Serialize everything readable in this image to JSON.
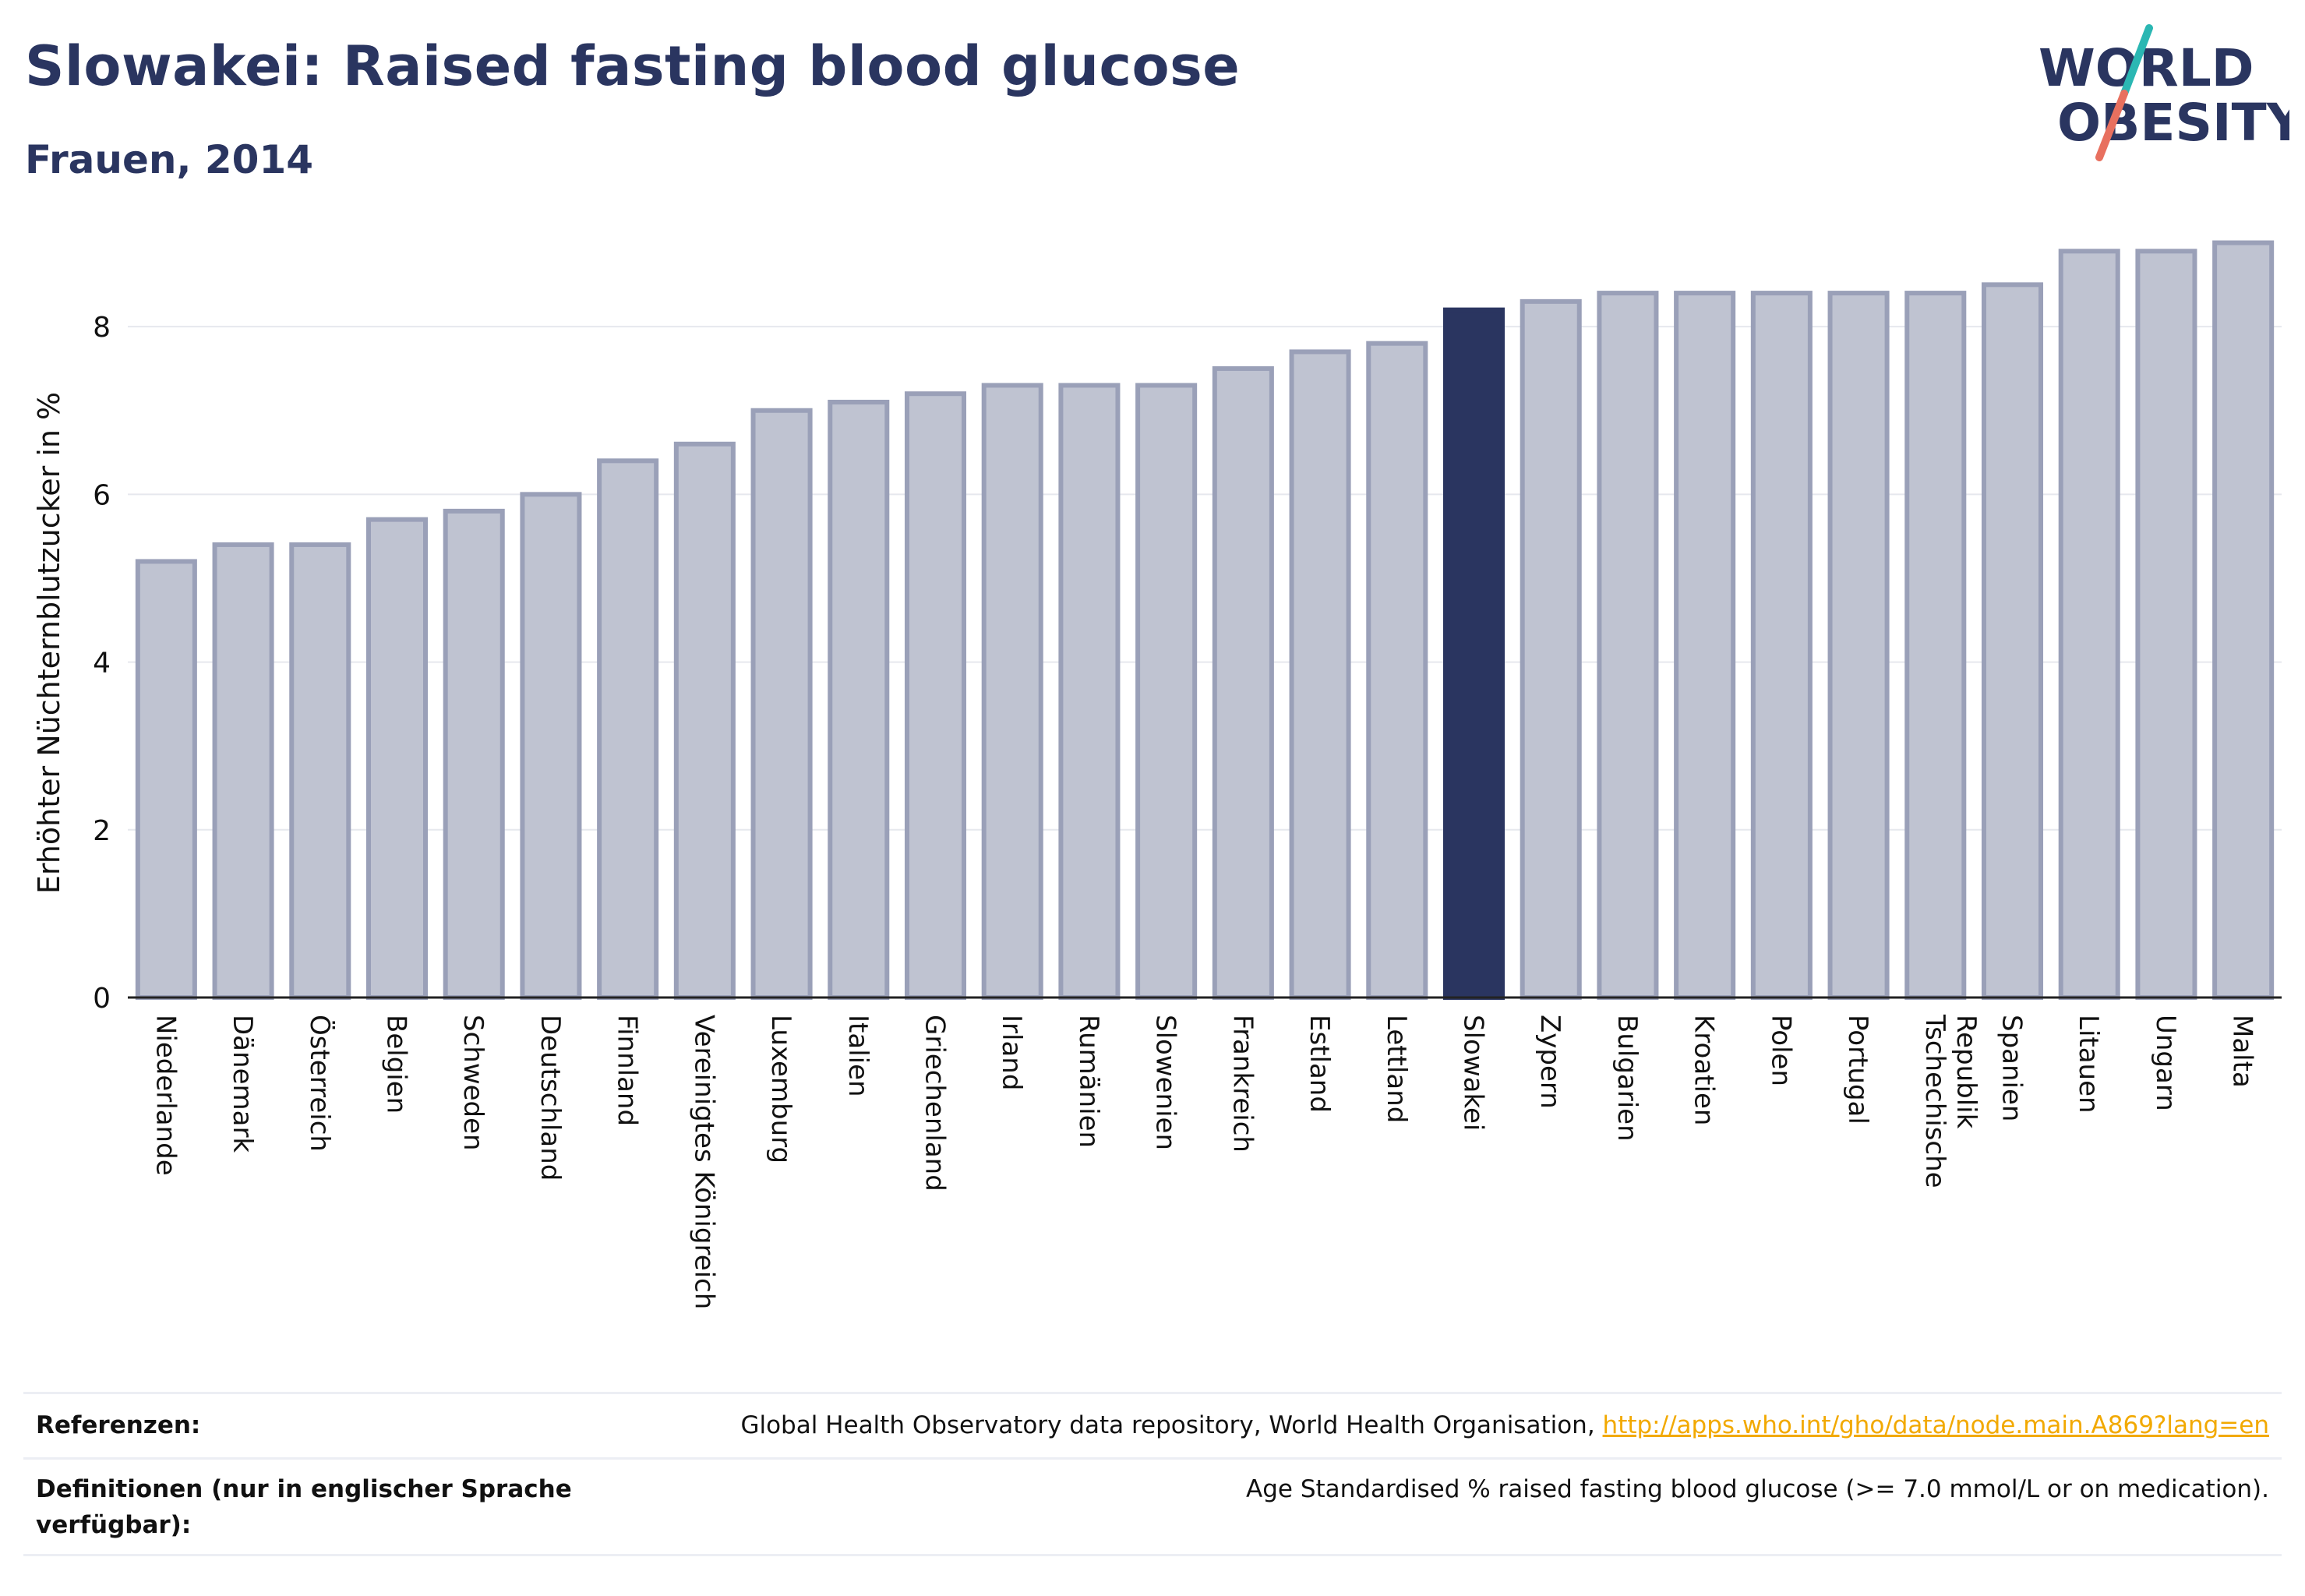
{
  "header": {
    "title": "Slowakei: Raised fasting blood glucose",
    "subtitle": "Frauen, 2014"
  },
  "logo": {
    "line1": "WORLD",
    "line2": "OBESITY",
    "accent_teal": "#2bb7b3",
    "accent_coral": "#e8705f"
  },
  "colors": {
    "bar_default": "#bfc3d1",
    "bar_default_border": "#9aa0b8",
    "bar_highlight": "#2a3560",
    "text_dark": "#2a3560",
    "link": "#f2a900"
  },
  "chart_data": {
    "type": "bar",
    "title": "Slowakei: Raised fasting blood glucose",
    "subtitle": "Frauen, 2014",
    "xlabel": "",
    "ylabel": "Erhöhter Nüchternblutzucker in %",
    "ylim": [
      0,
      9.2
    ],
    "yticks": [
      0,
      2,
      4,
      6,
      8
    ],
    "grid": true,
    "highlight": "Slowakei",
    "categories": [
      "Niederlande",
      "Dänemark",
      "Österreich",
      "Belgien",
      "Schweden",
      "Deutschland",
      "Finnland",
      "Vereinigtes Königreich",
      "Luxemburg",
      "Italien",
      "Griechenland",
      "Irland",
      "Rumänien",
      "Slowenien",
      "Frankreich",
      "Estland",
      "Lettland",
      "Slowakei",
      "Zypern",
      "Bulgarien",
      "Kroatien",
      "Polen",
      "Portugal",
      "Tschechische Republik",
      "Spanien",
      "Litauen",
      "Ungarn",
      "Malta"
    ],
    "values": [
      5.2,
      5.4,
      5.4,
      5.7,
      5.8,
      6.0,
      6.4,
      6.6,
      7.0,
      7.1,
      7.2,
      7.3,
      7.3,
      7.3,
      7.5,
      7.7,
      7.8,
      8.2,
      8.3,
      8.4,
      8.4,
      8.4,
      8.4,
      8.4,
      8.5,
      8.9,
      8.9,
      9.0
    ]
  },
  "footer": {
    "references_label": "Referenzen:",
    "references_text": "Global Health Observatory data repository, World Health Organisation, ",
    "references_link": "http://apps.who.int/gho/data/node.main.A869?lang=en",
    "definitions_label": "Definitionen (nur in englischer Sprache verfügbar):",
    "definitions_text": "Age Standardised % raised fasting blood glucose (>= 7.0 mmol/L or on medication)."
  }
}
